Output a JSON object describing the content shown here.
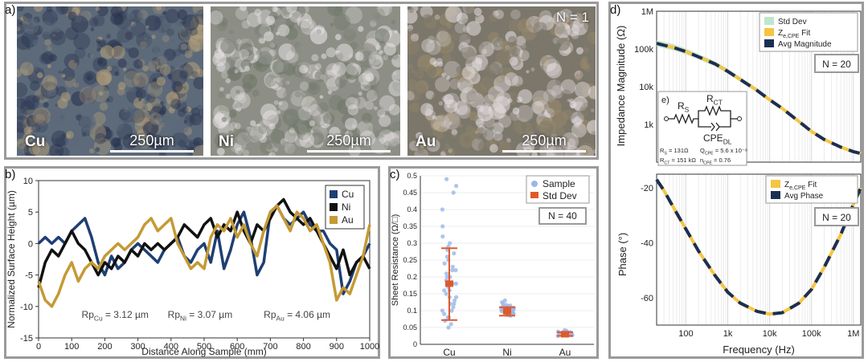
{
  "figure": {
    "panel_labels": {
      "a": "a)",
      "b": "b)",
      "c": "c)",
      "d": "d)",
      "e": "e)"
    }
  },
  "panel_a": {
    "images": [
      {
        "label": "Cu",
        "scale": "250µm",
        "base": "#5d6a7a",
        "spot": "#2a3450",
        "light": "#b7a27a"
      },
      {
        "label": "Ni",
        "scale": "250µm",
        "base": "#8d8f86",
        "spot": "#e9e4e6",
        "light": "#6f7668"
      },
      {
        "label": "Au",
        "scale": "250µm",
        "base": "#7c776b",
        "spot": "#e6dfe2",
        "light": "#9a8a6a"
      }
    ],
    "n_label": "N = 1"
  },
  "chart_data": [
    {
      "id": "b",
      "type": "line",
      "xlabel": "Distance Along Sample (mm)",
      "ylabel": "Normalized Surface Height (µm)",
      "xlim": [
        0,
        1000
      ],
      "ylim": [
        -15,
        10
      ],
      "xticks": [
        0,
        100,
        200,
        300,
        400,
        500,
        600,
        700,
        800,
        900,
        1000
      ],
      "yticks": [
        -15,
        -10,
        -5,
        0,
        5,
        10
      ],
      "legend": "top-right",
      "series": [
        {
          "name": "Cu",
          "color": "#1f3f73",
          "x": [
            0,
            20,
            40,
            60,
            80,
            100,
            120,
            140,
            160,
            180,
            200,
            220,
            240,
            260,
            280,
            300,
            320,
            340,
            360,
            380,
            400,
            420,
            440,
            460,
            480,
            500,
            520,
            540,
            560,
            580,
            600,
            620,
            640,
            660,
            680,
            700,
            720,
            740,
            760,
            780,
            800,
            820,
            840,
            860,
            880,
            900,
            920,
            940,
            960,
            980,
            1000
          ],
          "y": [
            0,
            1,
            0,
            1,
            0,
            2,
            3,
            4,
            1,
            -3,
            -5,
            -2,
            -4,
            -3,
            -1,
            0,
            -1,
            -2,
            -3,
            -1,
            0,
            1,
            -2,
            -3,
            -1,
            0,
            -3,
            2,
            -4,
            -1,
            3,
            5,
            1,
            -5,
            -3,
            5,
            6,
            4,
            3,
            4,
            5,
            3,
            2,
            2,
            0,
            -1,
            -8,
            -6,
            -3,
            -2,
            0
          ]
        },
        {
          "name": "Ni",
          "color": "#111111",
          "x": [
            0,
            20,
            40,
            60,
            80,
            100,
            120,
            140,
            160,
            180,
            200,
            220,
            240,
            260,
            280,
            300,
            320,
            340,
            360,
            380,
            400,
            420,
            440,
            460,
            480,
            500,
            520,
            540,
            560,
            580,
            600,
            620,
            640,
            660,
            680,
            700,
            720,
            740,
            760,
            780,
            800,
            820,
            840,
            860,
            880,
            900,
            920,
            940,
            960,
            980,
            1000
          ],
          "y": [
            -7,
            -3,
            -1,
            -2,
            0,
            2,
            0,
            -1,
            -3,
            -5,
            -3,
            -4,
            -2,
            -3,
            -1,
            -2,
            0,
            -1,
            0,
            -1,
            0,
            1,
            3,
            2,
            1,
            3,
            4,
            1,
            3,
            2,
            5,
            2,
            0,
            3,
            2,
            4,
            6,
            7,
            5,
            4,
            3,
            4,
            2,
            0,
            -2,
            -4,
            -1,
            -5,
            -3,
            -2,
            -4
          ]
        },
        {
          "name": "Au",
          "color": "#c59a35",
          "x": [
            0,
            20,
            40,
            60,
            80,
            100,
            120,
            140,
            160,
            180,
            200,
            220,
            240,
            260,
            280,
            300,
            320,
            340,
            360,
            380,
            400,
            420,
            440,
            460,
            480,
            500,
            520,
            540,
            560,
            580,
            600,
            620,
            640,
            660,
            680,
            700,
            720,
            740,
            760,
            780,
            800,
            820,
            840,
            860,
            880,
            900,
            920,
            940,
            960,
            980,
            1000
          ],
          "y": [
            -6,
            -9,
            -10,
            -8,
            -5,
            -3,
            -6,
            -4,
            -3,
            -4,
            -2,
            -1,
            0,
            -1,
            0,
            1,
            3,
            4,
            2,
            3,
            4,
            0,
            -2,
            -4,
            -3,
            -4,
            1,
            3,
            2,
            4,
            1,
            3,
            0,
            -2,
            2,
            5,
            6,
            4,
            2,
            5,
            4,
            2,
            3,
            0,
            -3,
            -9,
            -7,
            -8,
            -5,
            -2,
            3
          ]
        }
      ],
      "annotations": [
        {
          "base": "Rp",
          "sub": "Cu",
          "text": " = 3.12 µm",
          "x": 130,
          "y": -11.8
        },
        {
          "base": "Rp",
          "sub": "Ni",
          "text": " = 3.07 µm",
          "x": 390,
          "y": -11.8
        },
        {
          "base": "Rp",
          "sub": "Au",
          "text": " = 4.06 µm",
          "x": 680,
          "y": -11.8
        }
      ]
    },
    {
      "id": "c",
      "type": "scatter",
      "ylabel": "Sheet Resistance (Ω/□)",
      "categories": [
        "Cu",
        "Ni",
        "Au"
      ],
      "ylim": [
        0,
        0.5
      ],
      "yticks": [
        0,
        0.05,
        0.1,
        0.15,
        0.2,
        0.25,
        0.3,
        0.35,
        0.4,
        0.45,
        0.5
      ],
      "ytick_labels": [
        "0",
        "0.05",
        "0.1",
        "0.15",
        "0.2",
        "0.25",
        "0.3",
        "0.35",
        "0.4",
        "0.45",
        "0.5"
      ],
      "legend": "top-right",
      "legend_labels": {
        "points": "Sample",
        "error": "Std Dev"
      },
      "n_label": "N = 40",
      "point_color": "#9ab6e6",
      "error_color": "#e0592a",
      "series": [
        {
          "name": "Cu",
          "mean": 0.18,
          "std_low": 0.072,
          "std_high": 0.285,
          "points": [
            0.05,
            0.06,
            0.07,
            0.08,
            0.09,
            0.1,
            0.11,
            0.12,
            0.13,
            0.14,
            0.15,
            0.16,
            0.17,
            0.18,
            0.19,
            0.2,
            0.21,
            0.22,
            0.23,
            0.25,
            0.27,
            0.29,
            0.3,
            0.32,
            0.35,
            0.4,
            0.45,
            0.47,
            0.49,
            0.08,
            0.1,
            0.12,
            0.14,
            0.16,
            0.18,
            0.2,
            0.22,
            0.24,
            0.26,
            0.28
          ]
        },
        {
          "name": "Ni",
          "mean": 0.098,
          "std_low": 0.085,
          "std_high": 0.11,
          "points": [
            0.085,
            0.088,
            0.09,
            0.092,
            0.094,
            0.095,
            0.096,
            0.097,
            0.098,
            0.099,
            0.1,
            0.101,
            0.102,
            0.103,
            0.104,
            0.105,
            0.106,
            0.107,
            0.108,
            0.11,
            0.112,
            0.115,
            0.12,
            0.125,
            0.13,
            0.09,
            0.093,
            0.096,
            0.099,
            0.102,
            0.105,
            0.108,
            0.087,
            0.091,
            0.095,
            0.1,
            0.104,
            0.109,
            0.113,
            0.117
          ]
        },
        {
          "name": "Au",
          "mean": 0.03,
          "std_low": 0.025,
          "std_high": 0.036,
          "points": [
            0.025,
            0.026,
            0.027,
            0.028,
            0.029,
            0.03,
            0.031,
            0.032,
            0.033,
            0.034,
            0.035,
            0.036,
            0.028,
            0.03,
            0.032,
            0.027,
            0.029,
            0.031,
            0.033,
            0.035,
            0.026,
            0.028,
            0.03,
            0.032,
            0.034,
            0.036,
            0.038,
            0.04,
            0.029,
            0.031,
            0.03,
            0.028,
            0.032,
            0.027,
            0.033,
            0.03,
            0.029,
            0.031,
            0.03,
            0.042
          ]
        }
      ]
    },
    {
      "id": "d_top",
      "type": "line",
      "ylabel": "Impedance Magnitude (Ω)",
      "xscale": "log",
      "yscale": "log",
      "xlim": [
        20,
        1500000
      ],
      "ylim": [
        100,
        1000000
      ],
      "yticks": [
        1000,
        10000,
        100000,
        1000000
      ],
      "ytick_labels": [
        "1k",
        "10k",
        "100k",
        "1M"
      ],
      "legend": "top-right",
      "n_label": "N = 20",
      "series": [
        {
          "name": "Std Dev",
          "kind": "band",
          "color": "#bfe6cf"
        },
        {
          "name_base": "Z",
          "name_sub": "e,CPE",
          "name_suffix": " Fit",
          "kind": "fit",
          "color": "#f5c542"
        },
        {
          "name": "Avg Magnitude",
          "kind": "avg",
          "color": "#1c2f52"
        }
      ],
      "x": [
        20,
        50,
        100,
        200,
        500,
        1000,
        2000,
        5000,
        10000,
        20000,
        50000,
        100000,
        200000,
        500000,
        1000000,
        1500000
      ],
      "y": [
        140000,
        110000,
        85000,
        62000,
        40000,
        25500,
        15500,
        8000,
        4500,
        2650,
        1200,
        650,
        400,
        250,
        190,
        170
      ],
      "band_low": [
        115000,
        92000,
        72000,
        53000,
        34500,
        22000,
        13500,
        7000,
        4000,
        2400,
        1100,
        610,
        380,
        240,
        185,
        165
      ],
      "band_high": [
        170000,
        135000,
        103000,
        74000,
        47000,
        30000,
        18000,
        9200,
        5100,
        2950,
        1320,
        700,
        420,
        262,
        198,
        176
      ]
    },
    {
      "id": "d_bottom",
      "type": "line",
      "xlabel": "Frequency (Hz)",
      "ylabel": "Phase (°)",
      "xscale": "log",
      "xlim": [
        20,
        1500000
      ],
      "ylim": [
        -70,
        -15
      ],
      "xticks": [
        100,
        1000,
        10000,
        100000,
        1000000
      ],
      "xtick_labels": [
        "100",
        "1k",
        "10k",
        "100k",
        "1M"
      ],
      "yticks": [
        -60,
        -40,
        -20
      ],
      "legend": "top-right",
      "n_label": "N = 20",
      "series": [
        {
          "name_base": "Z",
          "name_sub": "e,CPE",
          "name_suffix": " Fit",
          "kind": "fit",
          "color": "#f5c542"
        },
        {
          "name": "Avg Phase",
          "kind": "avg",
          "color": "#1c2f52"
        }
      ],
      "x": [
        20,
        30,
        50,
        100,
        200,
        500,
        1000,
        2000,
        5000,
        10000,
        20000,
        50000,
        100000,
        200000,
        500000,
        1000000,
        1500000
      ],
      "y": [
        -17,
        -21,
        -27,
        -35,
        -43,
        -52,
        -58,
        -62,
        -65,
        -66,
        -65.5,
        -62,
        -57,
        -49,
        -37,
        -26,
        -20
      ]
    }
  ],
  "circuit": {
    "label": "e)",
    "rs_base": "R",
    "rs_sub": "S",
    "rct_base": "R",
    "rct_sub": "CT",
    "cpe_base": "CPE",
    "cpe_sub": "DL",
    "v1_a": "R",
    "v1_a_sub": "S",
    "v1_a_val": " = 131Ω",
    "v1_b": "Q",
    "v1_b_sub": "CPE",
    "v1_b_val": " = 5.6 x 10⁻⁸",
    "v2_a": "R",
    "v2_a_sub": "CT",
    "v2_a_val": " = 151 kΩ",
    "v2_b": "n",
    "v2_b_sub": "CPE",
    "v2_b_val": " = 0.76"
  }
}
